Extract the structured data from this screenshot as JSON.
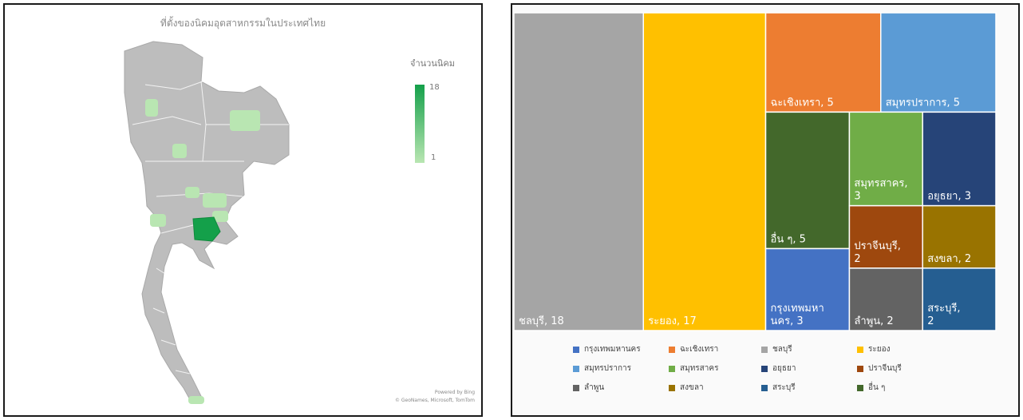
{
  "map": {
    "title": "ที่ตั้งของนิคมอุตสาหกรรมในประเทศไทย",
    "legend_title": "จำนวนนิคม",
    "legend_max": "18",
    "legend_min": "1",
    "credit_line1": "Powered by Bing",
    "credit_line2": "© GeoNames, Microsoft, TomTom",
    "colors": {
      "base": "#bdbdbd",
      "low": "#b9e6b2",
      "high": "#14a04a",
      "border": "#ffffff"
    }
  },
  "chart_data": {
    "type": "treemap",
    "items": [
      {
        "label": "ชลบุรี",
        "value": 18,
        "display": "ชลบุรี, 18",
        "color": "#a5a5a5"
      },
      {
        "label": "ระยอง",
        "value": 17,
        "display": "ระยอง, 17",
        "color": "#ffc000"
      },
      {
        "label": "ฉะเชิงเทรา",
        "value": 5,
        "display": "ฉะเชิงเทรา, 5",
        "color": "#ed7d31"
      },
      {
        "label": "สมุทรปราการ",
        "value": 5,
        "display": "สมุทรปราการ, 5",
        "color": "#5b9bd5"
      },
      {
        "label": "อื่น ๆ",
        "value": 5,
        "display": "อื่น ๆ, 5",
        "color": "#43682b"
      },
      {
        "label": "สมุทรสาคร",
        "value": 3,
        "display": "สมุทรสาคร, 3",
        "color": "#70ad47"
      },
      {
        "label": "อยุธยา",
        "value": 3,
        "display": "อยุธยา, 3",
        "color": "#264478"
      },
      {
        "label": "กรุงเทพมหานคร",
        "value": 3,
        "display": "กรุงเทพมหา นคร, 3",
        "color": "#4472c4"
      },
      {
        "label": "ปราจีนบุรี",
        "value": 2,
        "display": "ปราจีนบุรี, 2",
        "color": "#9e480e"
      },
      {
        "label": "สงขลา",
        "value": 2,
        "display": "สงขลา, 2",
        "color": "#997300"
      },
      {
        "label": "ลำพูน",
        "value": 2,
        "display": "ลำพูน, 2",
        "color": "#636363"
      },
      {
        "label": "สระบุรี",
        "value": 2,
        "display": "สระบุรี, 2",
        "color": "#255e91"
      }
    ],
    "legend": [
      {
        "label": "กรุงเทพมหานคร",
        "color": "#4472c4"
      },
      {
        "label": "ฉะเชิงเทรา",
        "color": "#ed7d31"
      },
      {
        "label": "ชลบุรี",
        "color": "#a5a5a5"
      },
      {
        "label": "ระยอง",
        "color": "#ffc000"
      },
      {
        "label": "สมุทรปราการ",
        "color": "#5b9bd5"
      },
      {
        "label": "สมุทรสาคร",
        "color": "#70ad47"
      },
      {
        "label": "อยุธยา",
        "color": "#264478"
      },
      {
        "label": "ปราจีนบุรี",
        "color": "#9e480e"
      },
      {
        "label": "ลำพูน",
        "color": "#636363"
      },
      {
        "label": "สงขลา",
        "color": "#997300"
      },
      {
        "label": "สระบุรี",
        "color": "#255e91"
      },
      {
        "label": "อื่น ๆ",
        "color": "#43682b"
      }
    ]
  }
}
